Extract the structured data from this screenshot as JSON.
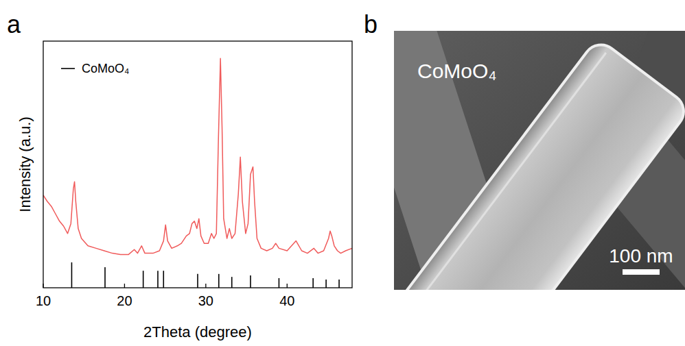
{
  "chart_data": {
    "type": "line",
    "panel_label": "a",
    "x_label": "2Theta (degree)",
    "y_label": "Intensity (a.u.)",
    "xlim": [
      10,
      48
    ],
    "xticks": [
      10,
      20,
      30,
      40
    ],
    "ylim": [
      0,
      100
    ],
    "tick_labels": "x",
    "legend": "upper left",
    "series": [
      {
        "color": "#f05a5a",
        "x": [
          10,
          10.5,
          11,
          11.5,
          12,
          12.5,
          13,
          13.4,
          13.7,
          13.85,
          14.0,
          14.3,
          14.7,
          15.5,
          16.5,
          17.5,
          18.5,
          19.5,
          20.5,
          21.2,
          21.6,
          22.1,
          22.5,
          23.5,
          24.3,
          24.8,
          25.05,
          25.3,
          25.8,
          26.5,
          27.0,
          27.6,
          28.0,
          28.3,
          28.6,
          28.9,
          29.15,
          29.4,
          29.8,
          30.3,
          30.7,
          31.0,
          31.3,
          31.55,
          31.8,
          32.0,
          32.2,
          32.6,
          32.9,
          33.2,
          33.6,
          34.0,
          34.25,
          34.5,
          34.9,
          35.2,
          35.5,
          35.8,
          36.0,
          36.3,
          36.8,
          37.5,
          38.2,
          38.6,
          39.0,
          40.0,
          41.1,
          41.8,
          42.5,
          43.3,
          43.8,
          44.5,
          45.1,
          45.3,
          45.5,
          45.8,
          46.2,
          46.6,
          47.2,
          48.0
        ],
        "values": [
          37.5,
          35,
          33,
          30,
          27,
          25,
          22,
          26,
          40,
          43,
          35,
          24,
          20,
          17,
          16,
          15,
          14,
          13.5,
          13.5,
          15.5,
          14,
          17,
          14,
          14,
          15,
          19,
          25.5,
          19,
          16,
          17,
          18,
          21,
          22,
          26,
          27,
          24,
          28,
          21,
          18,
          18,
          22,
          20,
          22,
          60,
          93,
          65,
          28,
          20,
          24,
          20,
          22,
          38,
          53,
          35,
          22,
          26,
          46,
          49,
          35,
          20,
          16,
          15,
          16,
          18,
          16,
          15,
          19,
          15,
          14,
          16,
          14,
          15,
          20,
          23,
          21,
          17,
          15,
          14,
          15,
          16
        ]
      },
      {
        "name": "CoMoO₄",
        "type": "stem",
        "color": "#000000",
        "x": [
          13.5,
          17.6,
          22.3,
          24.1,
          24.8,
          29.0,
          31.6,
          33.2,
          35.5,
          39.0,
          43.2,
          44.8,
          46.4
        ],
        "values": [
          10.3,
          8.3,
          6.9,
          6.9,
          6.9,
          5.6,
          5.6,
          4.4,
          5.0,
          3.9,
          3.9,
          3.3,
          3.3
        ]
      }
    ]
  },
  "image": {
    "panel_label": "b",
    "label": "CoMoO₄",
    "scale_bar": "100 nm"
  }
}
